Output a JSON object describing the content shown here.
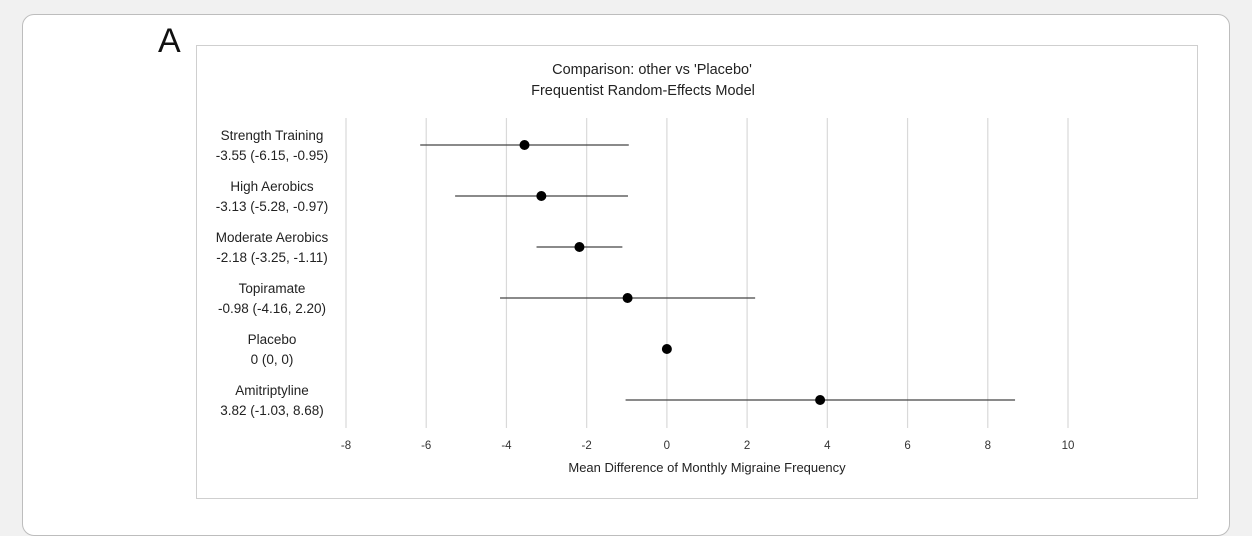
{
  "panel_label": "A",
  "chart_data": {
    "type": "forest",
    "title": "Comparison: other vs 'Placebo'",
    "subtitle": "Frequentist Random-Effects Model",
    "xlabel": "Mean Difference of Monthly Migraine Frequency",
    "xlim": [
      -8,
      10
    ],
    "xticks": [
      -8,
      -6,
      -4,
      -2,
      0,
      2,
      4,
      6,
      8,
      10
    ],
    "grid": true,
    "rows": [
      {
        "name": "Strength Training",
        "estimate_text": "-3.55 (-6.15, -0.95)",
        "mean": -3.55,
        "lower": -6.15,
        "upper": -0.95
      },
      {
        "name": "High Aerobics",
        "estimate_text": "-3.13 (-5.28, -0.97)",
        "mean": -3.13,
        "lower": -5.28,
        "upper": -0.97
      },
      {
        "name": "Moderate Aerobics",
        "estimate_text": "-2.18 (-3.25, -1.11)",
        "mean": -2.18,
        "lower": -3.25,
        "upper": -1.11
      },
      {
        "name": "Topiramate",
        "estimate_text": "-0.98 (-4.16, 2.20)",
        "mean": -0.98,
        "lower": -4.16,
        "upper": 2.2
      },
      {
        "name": "Placebo",
        "estimate_text": "0 (0, 0)",
        "mean": 0,
        "lower": 0,
        "upper": 0
      },
      {
        "name": "Amitriptyline",
        "estimate_text": "3.82 (-1.03, 8.68)",
        "mean": 3.82,
        "lower": -1.03,
        "upper": 8.68
      }
    ],
    "colors": {
      "marker": "#000000",
      "ci_line": "#444444",
      "grid": "#d9d9d9"
    }
  }
}
